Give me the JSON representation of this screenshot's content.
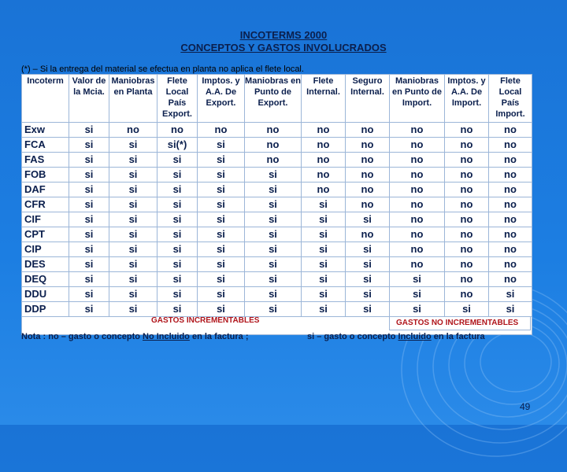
{
  "title_line1": "INCOTERMS 2000",
  "title_line2": "CONCEPTOS Y GASTOS INVOLUCRADOS",
  "note_top": "(*) – Si la entrega del material se efectua en planta no aplica el flete local.",
  "headers": [
    "Incoterm",
    "Valor de la Mcia.",
    "Maniobras en Planta",
    "Flete Local País Export.",
    "Imptos. y A.A. De Export.",
    "Maniobras en Punto de Export.",
    "Flete Internal.",
    "Seguro Internal.",
    "Maniobras en Punto de Import.",
    "Imptos. y A.A. De Import.",
    "Flete Local País Import."
  ],
  "rows": [
    {
      "term": "Exw",
      "values": [
        "si",
        "no",
        "no",
        "no",
        "no",
        "no",
        "no",
        "no",
        "no",
        "no"
      ]
    },
    {
      "term": "FCA",
      "values": [
        "si",
        "si",
        "si(*)",
        "si",
        "no",
        "no",
        "no",
        "no",
        "no",
        "no"
      ]
    },
    {
      "term": "FAS",
      "values": [
        "si",
        "si",
        "si",
        "si",
        "no",
        "no",
        "no",
        "no",
        "no",
        "no"
      ]
    },
    {
      "term": "FOB",
      "values": [
        "si",
        "si",
        "si",
        "si",
        "si",
        "no",
        "no",
        "no",
        "no",
        "no"
      ]
    },
    {
      "term": "DAF",
      "values": [
        "si",
        "si",
        "si",
        "si",
        "si",
        "no",
        "no",
        "no",
        "no",
        "no"
      ]
    },
    {
      "term": "CFR",
      "values": [
        "si",
        "si",
        "si",
        "si",
        "si",
        "si",
        "no",
        "no",
        "no",
        "no"
      ]
    },
    {
      "term": "CIF",
      "values": [
        "si",
        "si",
        "si",
        "si",
        "si",
        "si",
        "si",
        "no",
        "no",
        "no"
      ]
    },
    {
      "term": "CPT",
      "values": [
        "si",
        "si",
        "si",
        "si",
        "si",
        "si",
        "no",
        "no",
        "no",
        "no"
      ]
    },
    {
      "term": "CIP",
      "values": [
        "si",
        "si",
        "si",
        "si",
        "si",
        "si",
        "si",
        "no",
        "no",
        "no"
      ]
    },
    {
      "term": "DES",
      "values": [
        "si",
        "si",
        "si",
        "si",
        "si",
        "si",
        "si",
        "no",
        "no",
        "no"
      ]
    },
    {
      "term": "DEQ",
      "values": [
        "si",
        "si",
        "si",
        "si",
        "si",
        "si",
        "si",
        "si",
        "no",
        "no"
      ]
    },
    {
      "term": "DDU",
      "values": [
        "si",
        "si",
        "si",
        "si",
        "si",
        "si",
        "si",
        "si",
        "no",
        "si"
      ]
    },
    {
      "term": "DDP",
      "values": [
        "si",
        "si",
        "si",
        "si",
        "si",
        "si",
        "si",
        "si",
        "si",
        "si"
      ]
    }
  ],
  "gastos_incrementables": "GASTOS INCREMENTABLES",
  "gastos_no_incrementables": "GASTOS  NO  INCREMENTABLES",
  "nota_left_prefix": "Nota :  no – gasto o concepto ",
  "nota_left_underlined": "No Incluido",
  "nota_left_suffix": " en la factura  ;",
  "nota_right_prefix": "si – gasto o concepto  ",
  "nota_right_underlined": "Incluido",
  "nota_right_suffix": " en la factura",
  "page_number": "49"
}
